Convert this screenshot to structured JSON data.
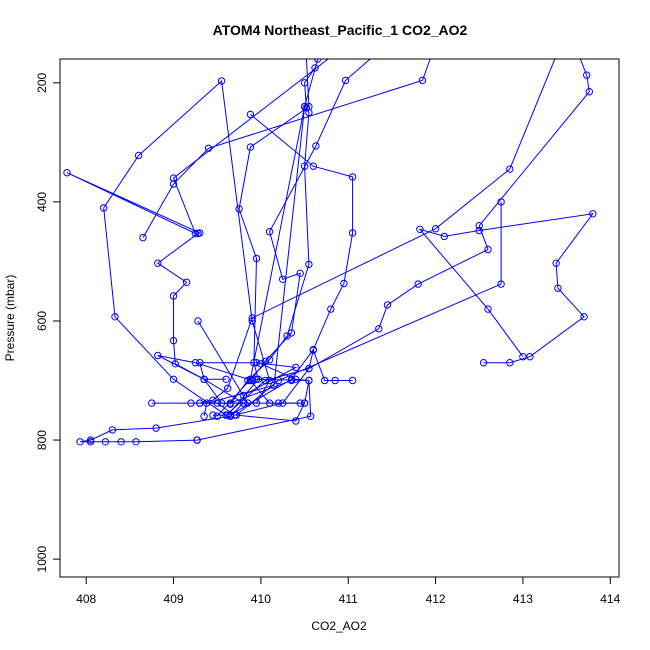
{
  "chart_data": {
    "type": "line",
    "title": "ATOM4 Northeast_Pacific_1 CO2_AO2",
    "xlabel": "CO2_AO2",
    "ylabel": "Pressure (mbar)",
    "xlim": [
      407.7,
      414.1
    ],
    "ylim": [
      1030,
      160
    ],
    "y_inverted": true,
    "x_ticks": [
      408,
      409,
      410,
      411,
      412,
      413,
      414
    ],
    "y_ticks": [
      200,
      400,
      600,
      800,
      1000
    ],
    "grid": false,
    "color": "#0000ff",
    "marker": "open-circle",
    "series": [
      {
        "values": [
          [
            409.28,
            600
          ],
          [
            409.85,
            738
          ],
          [
            409.95,
            738
          ],
          [
            410.1,
            700
          ],
          [
            409.9,
            600
          ],
          [
            409.55,
            197
          ],
          [
            408.6,
            322
          ],
          [
            408.2,
            410
          ],
          [
            408.33,
            593
          ],
          [
            409.0,
            698
          ],
          [
            409.6,
            758
          ],
          [
            410.05,
            700
          ],
          [
            410.55,
            680
          ],
          [
            410.6,
            649
          ],
          [
            410.73,
            700
          ],
          [
            410.85,
            700
          ],
          [
            411.05,
            700
          ]
        ]
      },
      {
        "values": [
          [
            412.55,
            670
          ],
          [
            412.85,
            670
          ],
          [
            413.08,
            660
          ],
          [
            413.7,
            593
          ],
          [
            413.4,
            545
          ],
          [
            413.38,
            503
          ],
          [
            413.8,
            420
          ],
          [
            412.5,
            448
          ],
          [
            412.1,
            458
          ],
          [
            411.82,
            446
          ],
          [
            412.6,
            580
          ],
          [
            413.0,
            660
          ]
        ]
      },
      {
        "values": [
          [
            413.55,
            120
          ],
          [
            413.73,
            187
          ],
          [
            413.76,
            215
          ],
          [
            412.5,
            440
          ],
          [
            412.6,
            480
          ],
          [
            411.8,
            538
          ],
          [
            411.45,
            573
          ],
          [
            411.35,
            613
          ],
          [
            410.55,
            680
          ],
          [
            410.25,
            738
          ],
          [
            409.7,
            758
          ],
          [
            409.5,
            738
          ],
          [
            409.3,
            738
          ],
          [
            408.75,
            738
          ],
          [
            409.2,
            738
          ],
          [
            410.2,
            738
          ],
          [
            410.5,
            738
          ]
        ]
      },
      {
        "values": [
          [
            412.75,
            400
          ],
          [
            412.75,
            538
          ],
          [
            410.2,
            700
          ],
          [
            409.72,
            758
          ],
          [
            410.4,
            768
          ],
          [
            410.5,
            738
          ],
          [
            410.55,
            700
          ],
          [
            410.4,
            698
          ],
          [
            410.0,
            672
          ]
        ]
      },
      {
        "values": [
          [
            413.45,
            130
          ],
          [
            412.85,
            345
          ],
          [
            412.0,
            445
          ],
          [
            409.9,
            595
          ],
          [
            409.62,
            713
          ],
          [
            409.45,
            733
          ],
          [
            409.3,
            738
          ],
          [
            409.65,
            738
          ],
          [
            410.35,
            700
          ]
        ]
      },
      {
        "values": [
          [
            410.62,
            175
          ],
          [
            410.5,
            200
          ],
          [
            410.52,
            242
          ],
          [
            410.55,
            250
          ],
          [
            410.5,
            340
          ],
          [
            410.55,
            505
          ],
          [
            410.3,
            625
          ],
          [
            410.1,
            665
          ],
          [
            409.85,
            700
          ],
          [
            409.65,
            740
          ]
        ]
      },
      {
        "values": [
          [
            410.5,
            100
          ],
          [
            410.55,
            240
          ],
          [
            409.88,
            308
          ],
          [
            409.75,
            412
          ],
          [
            409.95,
            495
          ],
          [
            409.92,
            670
          ],
          [
            409.97,
            698
          ],
          [
            409.62,
            758
          ],
          [
            409.45,
            758
          ]
        ]
      },
      {
        "values": [
          [
            411.72,
            100
          ],
          [
            410.97,
            196
          ],
          [
            410.63,
            306
          ],
          [
            410.1,
            450
          ],
          [
            410.25,
            530
          ],
          [
            410.45,
            520
          ],
          [
            410.35,
            620
          ],
          [
            410.05,
            668
          ],
          [
            409.88,
            700
          ],
          [
            410.1,
            738
          ],
          [
            410.45,
            738
          ]
        ]
      },
      {
        "values": [
          [
            411.3,
            100
          ],
          [
            409.0,
            360
          ],
          [
            409.25,
            453
          ],
          [
            407.78,
            351
          ],
          [
            409.3,
            452
          ],
          [
            409.28,
            453
          ],
          [
            408.82,
            503
          ],
          [
            409.15,
            535
          ],
          [
            409.0,
            558
          ],
          [
            409.0,
            633
          ],
          [
            409.02,
            672
          ],
          [
            409.35,
            698
          ],
          [
            409.55,
            738
          ]
        ]
      },
      {
        "values": [
          [
            409.88,
            253
          ],
          [
            410.6,
            340
          ],
          [
            411.05,
            358
          ],
          [
            411.05,
            452
          ],
          [
            410.95,
            537
          ],
          [
            410.8,
            580
          ],
          [
            410.6,
            648
          ],
          [
            410.35,
            698
          ],
          [
            409.65,
            758
          ]
        ]
      },
      {
        "values": [
          [
            409.5,
            760
          ],
          [
            409.88,
            698
          ],
          [
            410.5,
            240
          ],
          [
            410.65,
            160
          ],
          [
            410.5,
            240
          ],
          [
            410.15,
            708
          ],
          [
            409.38,
            738
          ],
          [
            409.35,
            760
          ]
        ]
      },
      {
        "values": [
          [
            411.95,
            155
          ],
          [
            411.85,
            196
          ],
          [
            409.4,
            310
          ],
          [
            409.0,
            370
          ],
          [
            408.65,
            460
          ]
        ]
      },
      {
        "values": [
          [
            409.27,
            800
          ],
          [
            410.57,
            760
          ],
          [
            410.55,
            700
          ],
          [
            409.95,
            698
          ],
          [
            409.9,
            700
          ],
          [
            409.25,
            670
          ],
          [
            408.82,
            658
          ],
          [
            409.35,
            698
          ],
          [
            409.8,
            738
          ],
          [
            409.65,
            760
          ],
          [
            408.8,
            780
          ],
          [
            408.3,
            783
          ],
          [
            408.05,
            800
          ],
          [
            407.93,
            803
          ],
          [
            408.05,
            803
          ],
          [
            408.22,
            803
          ],
          [
            408.4,
            803
          ],
          [
            408.57,
            803
          ],
          [
            409.27,
            800
          ]
        ]
      },
      {
        "values": [
          [
            409.8,
            725
          ],
          [
            410.4,
            678
          ],
          [
            409.95,
            670
          ],
          [
            409.3,
            670
          ],
          [
            409.35,
            698
          ],
          [
            409.6,
            698
          ]
        ]
      }
    ]
  }
}
